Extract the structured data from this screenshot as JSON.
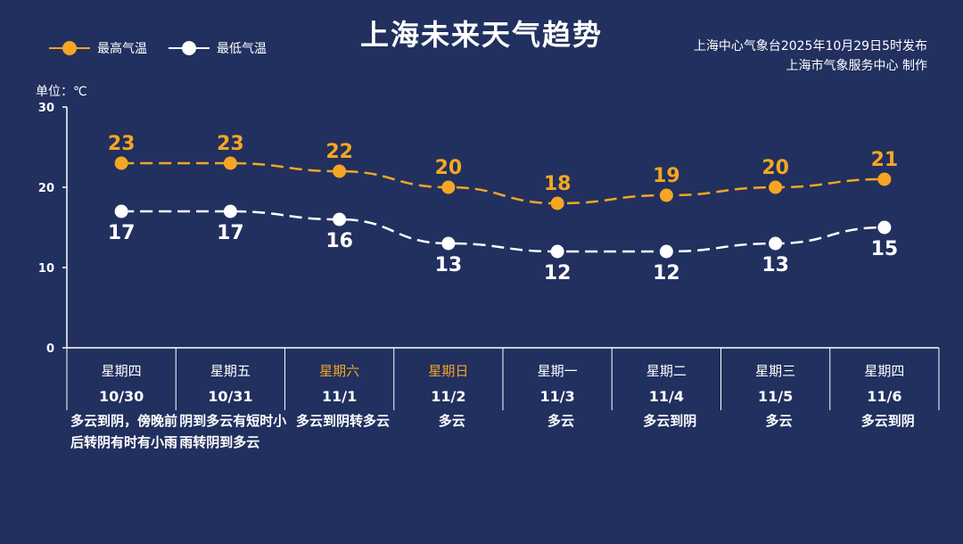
{
  "title": "上海未来天气趋势",
  "legend": {
    "high": "最高气温",
    "low": "最低气温"
  },
  "source": {
    "line1": "上海中心气象台2025年10月29日5时发布",
    "line2": "上海市气象服务中心  制作"
  },
  "unit_label": "单位：℃",
  "colors": {
    "background": "#21305f",
    "high": "#f5a623",
    "low": "#ffffff",
    "weekend": "#f5a623"
  },
  "chart_data": {
    "type": "line",
    "ylim": [
      0,
      30
    ],
    "yticks": [
      0,
      10,
      20,
      30
    ],
    "grid": false,
    "legend_position": "top-left",
    "categories": [
      "10/30",
      "10/31",
      "11/1",
      "11/2",
      "11/3",
      "11/4",
      "11/5",
      "11/6"
    ],
    "weekdays": [
      "星期四",
      "星期五",
      "星期六",
      "星期日",
      "星期一",
      "星期二",
      "星期三",
      "星期四"
    ],
    "weekend": [
      false,
      false,
      true,
      true,
      false,
      false,
      false,
      false
    ],
    "conditions": [
      "多云到阴，傍晚前后转阴有时有小雨",
      "阴到多云有短时小雨转阴到多云",
      "多云到阴转多云",
      "多云",
      "多云",
      "多云到阴",
      "多云",
      "多云到阴"
    ],
    "series": [
      {
        "name": "最高气温",
        "values": [
          23,
          23,
          22,
          20,
          18,
          19,
          20,
          21
        ]
      },
      {
        "name": "最低气温",
        "values": [
          17,
          17,
          16,
          13,
          12,
          12,
          13,
          15
        ]
      }
    ]
  }
}
